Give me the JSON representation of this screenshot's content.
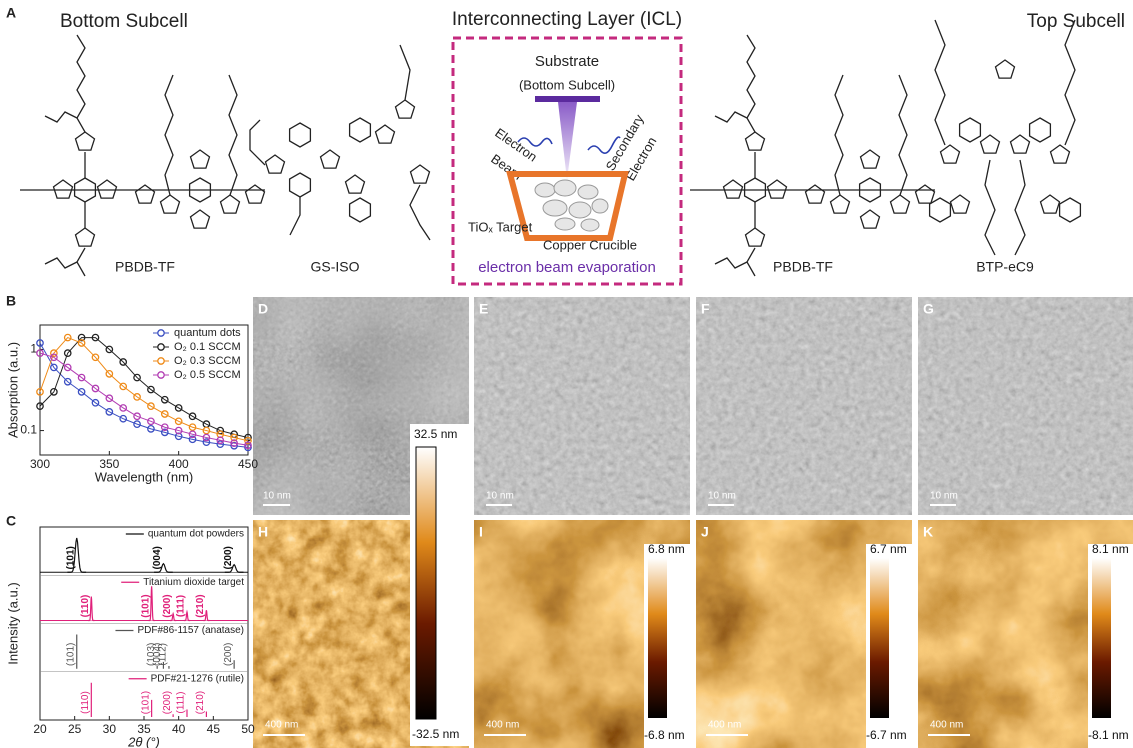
{
  "figure": {
    "panel_labels": [
      "A",
      "B",
      "C",
      "D",
      "E",
      "F",
      "G",
      "H",
      "I",
      "J",
      "K"
    ],
    "a": {
      "bottom_subcell": "Bottom Subcell",
      "icl_title": "Interconnecting Layer (ICL)",
      "top_subcell": "Top Subcell",
      "molecules": [
        "PBDB-TF",
        "GS-ISO",
        "PBDB-TF",
        "BTP-eC9"
      ],
      "schematic": {
        "substrate": "Substrate",
        "substrate_note": "(Bottom Subcell)",
        "beam_lines": [
          "Electron",
          "Beam"
        ],
        "secondary_lines": [
          "Secondary",
          "Electron"
        ],
        "target": "TiOₓ Target",
        "crucible": "Copper Crucible",
        "method": "electron beam evaporation"
      }
    },
    "tem_images": [
      {
        "scale_bar": "10 nm"
      },
      {
        "scale_bar": "10 nm"
      },
      {
        "scale_bar": "10 nm"
      },
      {
        "scale_bar": "10 nm"
      }
    ],
    "afm_images": [
      {
        "scale_bar": "400 nm",
        "max": "32.5 nm",
        "min": "-32.5 nm"
      },
      {
        "scale_bar": "400 nm",
        "max": "6.8 nm",
        "min": "-6.8 nm"
      },
      {
        "scale_bar": "400 nm",
        "max": "6.7 nm",
        "min": "-6.7 nm"
      },
      {
        "scale_bar": "400 nm",
        "max": "8.1 nm",
        "min": "-8.1 nm"
      }
    ]
  },
  "chart_data": [
    {
      "type": "line",
      "x_label": "Wavelength (nm)",
      "y_label": "Absorption (a.u.)",
      "x": [
        300,
        310,
        320,
        330,
        340,
        350,
        360,
        370,
        380,
        390,
        400,
        410,
        420,
        430,
        440,
        450
      ],
      "series": [
        {
          "name": "quantum dots",
          "color": "#3b4fc2",
          "values": [
            1.2,
            0.6,
            0.4,
            0.3,
            0.22,
            0.17,
            0.14,
            0.12,
            0.105,
            0.095,
            0.085,
            0.078,
            0.072,
            0.068,
            0.065,
            0.062
          ]
        },
        {
          "name": "O₂ 0.1 SCCM",
          "color": "#222222",
          "values": [
            0.2,
            0.3,
            0.9,
            1.4,
            1.4,
            1.0,
            0.7,
            0.45,
            0.32,
            0.24,
            0.19,
            0.15,
            0.12,
            0.1,
            0.09,
            0.082
          ]
        },
        {
          "name": "O₂ 0.3 SCCM",
          "color": "#ef8a17",
          "values": [
            0.3,
            0.9,
            1.4,
            1.2,
            0.8,
            0.5,
            0.35,
            0.26,
            0.2,
            0.16,
            0.13,
            0.11,
            0.1,
            0.09,
            0.082,
            0.075
          ]
        },
        {
          "name": "O₂ 0.5 SCCM",
          "color": "#b23db3",
          "values": [
            0.9,
            0.8,
            0.6,
            0.45,
            0.33,
            0.25,
            0.19,
            0.15,
            0.13,
            0.11,
            0.1,
            0.09,
            0.082,
            0.076,
            0.07,
            0.066
          ]
        }
      ],
      "xlim": [
        300,
        450
      ],
      "xticks": [
        300,
        350,
        400,
        450
      ],
      "ylim": [
        0.05,
        2
      ],
      "yticks": [
        0.1,
        1
      ],
      "log_y": true,
      "legend": "upper-right"
    },
    {
      "type": "xrd",
      "x_label": "2θ (°)",
      "y_label": "Intensity (a.u.)",
      "xlim": [
        20,
        50
      ],
      "xticks": [
        20,
        25,
        30,
        35,
        40,
        45,
        50
      ],
      "ylim": [
        0,
        100
      ],
      "series": [
        {
          "name": "quantum dot powders",
          "color": "#111111",
          "style": "curve",
          "x": [
            25.3,
            37.8,
            48.0
          ],
          "values": [
            100,
            25,
            22
          ],
          "peak_labels": [
            "(101)",
            "(004)",
            "(200)"
          ]
        },
        {
          "name": "Titanium dioxide target",
          "color": "#e0207a",
          "style": "curve",
          "x": [
            27.4,
            36.1,
            39.2,
            41.2,
            44.0
          ],
          "values": [
            70,
            100,
            20,
            25,
            30
          ],
          "peak_labels": [
            "(110)",
            "(101)",
            "(200)",
            "(111)",
            "(210)"
          ]
        },
        {
          "name": "PDF#86-1157 (anatase)",
          "color": "#555555",
          "style": "stick",
          "x": [
            25.3,
            36.9,
            37.8,
            38.6,
            48.0
          ],
          "values": [
            100,
            8,
            20,
            8,
            25
          ],
          "peak_labels": [
            "(101)",
            "(103)",
            "(004)",
            "(112)",
            "(200)"
          ]
        },
        {
          "name": "PDF#21-1276 (rutile)",
          "color": "#e0207a",
          "style": "stick",
          "x": [
            27.4,
            36.1,
            39.2,
            41.2,
            44.0
          ],
          "values": [
            100,
            50,
            8,
            22,
            16
          ],
          "peak_labels": [
            "(110)",
            "(101)",
            "(200)",
            "(111)",
            "(210)"
          ]
        }
      ]
    }
  ]
}
